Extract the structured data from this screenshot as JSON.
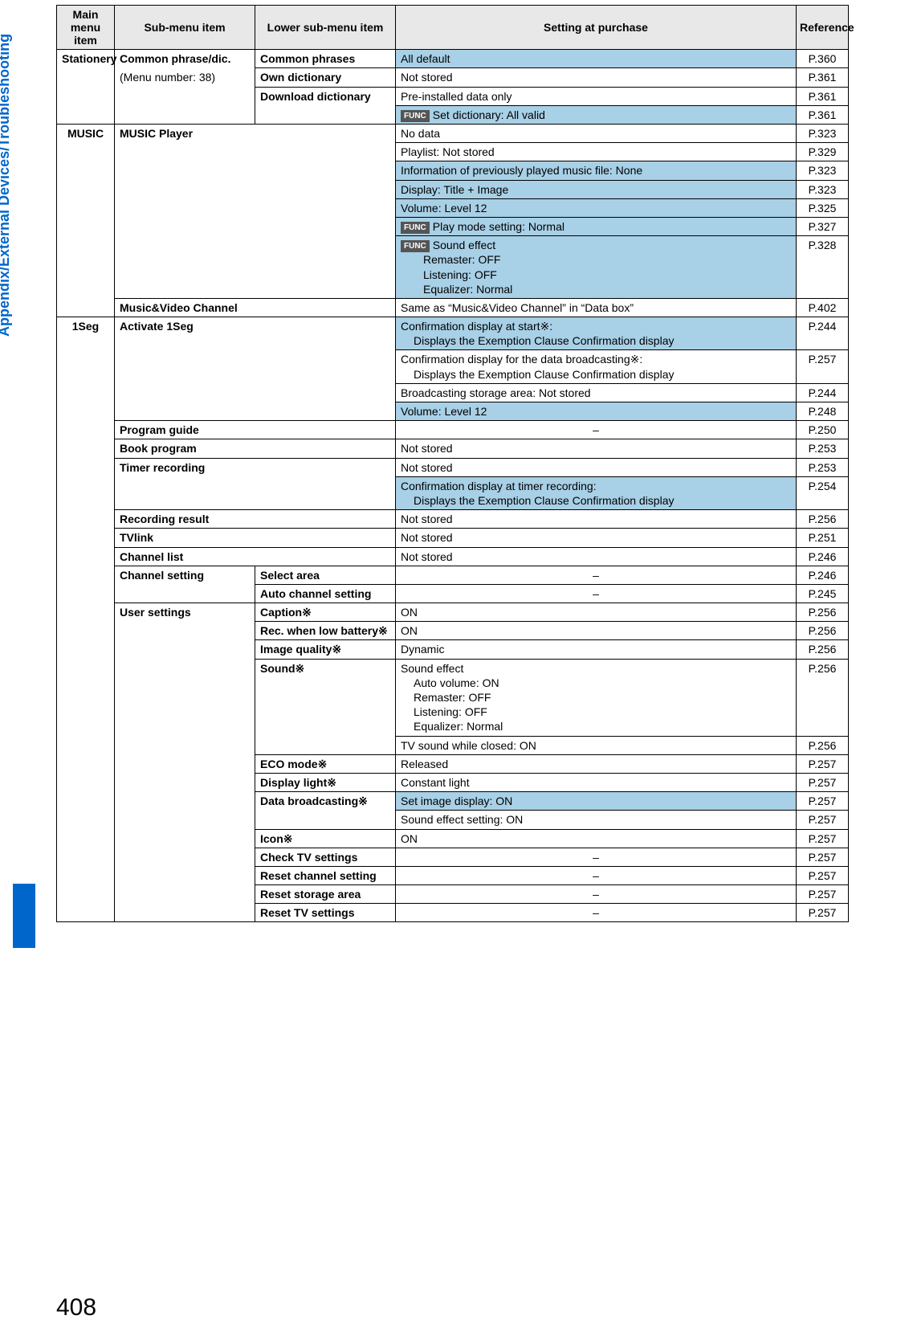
{
  "sidebar": {
    "label": "Appendix/External Devices/Troubleshooting"
  },
  "pageNumber": "408",
  "headers": {
    "main": "Main menu item",
    "sub": "Sub-menu item",
    "lower": "Lower sub-menu item",
    "setting": "Setting at purchase",
    "ref": "Reference"
  },
  "func": "FUNC",
  "sections": {
    "stationery": {
      "main": "Stationery",
      "sub1": "Common phrase/dic.",
      "sub2": "(Menu number: 38)",
      "r1_lower": "Common phrases",
      "r1_setting": "All default",
      "r1_ref": "P.360",
      "r2_lower": "Own dictionary",
      "r2_setting": "Not stored",
      "r2_ref": "P.361",
      "r3_lower": "Download dictionary",
      "r3_setting": "Pre-installed data only",
      "r3_ref": "P.361",
      "r4_setting": "Set dictionary: All valid",
      "r4_ref": "P.361"
    },
    "music": {
      "main": "MUSIC",
      "sub1": "MUSIC Player",
      "r1_setting": "No data",
      "r1_ref": "P.323",
      "r2_setting": "Playlist: Not stored",
      "r2_ref": "P.329",
      "r3_setting": "Information of previously played music file: None",
      "r3_ref": "P.323",
      "r4_setting": "Display: Title + Image",
      "r4_ref": "P.323",
      "r5_setting": "Volume: Level 12",
      "r5_ref": "P.325",
      "r6_setting": "Play mode setting: Normal",
      "r6_ref": "P.327",
      "r7_s1": "Sound effect",
      "r7_s2": "Remaster: OFF",
      "r7_s3": "Listening: OFF",
      "r7_s4": "Equalizer: Normal",
      "r7_ref": "P.328",
      "sub2": "Music&Video Channel",
      "r8_setting": "Same as “Music&Video Channel” in “Data box”",
      "r8_ref": "P.402"
    },
    "oneseg": {
      "main": "1Seg",
      "sub1": "Activate 1Seg",
      "r1_s1": "Confirmation display at start※:",
      "r1_s2": "Displays the Exemption Clause Confirmation display",
      "r1_ref": "P.244",
      "r2_s1": "Confirmation display for the data broadcasting※:",
      "r2_s2": "Displays the Exemption Clause Confirmation display",
      "r2_ref": "P.257",
      "r3_setting": "Broadcasting storage area: Not stored",
      "r3_ref": "P.244",
      "r4_setting": "Volume: Level 12",
      "r4_ref": "P.248",
      "sub2": "Program guide",
      "r5_setting": "–",
      "r5_ref": "P.250",
      "sub3": "Book program",
      "r6_setting": "Not stored",
      "r6_ref": "P.253",
      "sub4": "Timer recording",
      "r7_setting": "Not stored",
      "r7_ref": "P.253",
      "r8_s1": "Confirmation display at timer recording:",
      "r8_s2": "Displays the Exemption Clause Confirmation display",
      "r8_ref": "P.254",
      "sub5": "Recording result",
      "r9_setting": "Not stored",
      "r9_ref": "P.256",
      "sub6": "TVlink",
      "r10_setting": "Not stored",
      "r10_ref": "P.251",
      "sub7": "Channel list",
      "r11_setting": "Not stored",
      "r11_ref": "P.246",
      "sub8": "Channel setting",
      "l8a": "Select area",
      "r12_setting": "–",
      "r12_ref": "P.246",
      "l8b": "Auto channel setting",
      "r13_setting": "–",
      "r13_ref": "P.245",
      "sub9": "User settings",
      "l9a": "Caption※",
      "r14_setting": "ON",
      "r14_ref": "P.256",
      "l9b": "Rec. when low battery※",
      "r15_setting": "ON",
      "r15_ref": "P.256",
      "l9c": "Image quality※",
      "r16_setting": "Dynamic",
      "r16_ref": "P.256",
      "l9d": "Sound※",
      "r17_s1": "Sound effect",
      "r17_s2": "Auto volume: ON",
      "r17_s3": "Remaster: OFF",
      "r17_s4": "Listening: OFF",
      "r17_s5": "Equalizer: Normal",
      "r17_ref": "P.256",
      "r18_setting": "TV sound while closed: ON",
      "r18_ref": "P.256",
      "l9e": "ECO mode※",
      "r19_setting": "Released",
      "r19_ref": "P.257",
      "l9f": "Display light※",
      "r20_setting": "Constant light",
      "r20_ref": "P.257",
      "l9g": "Data broadcasting※",
      "r21_setting": "Set image display: ON",
      "r21_ref": "P.257",
      "r22_setting": "Sound effect setting: ON",
      "r22_ref": "P.257",
      "l9h": "Icon※",
      "r23_setting": "ON",
      "r23_ref": "P.257",
      "l9i": "Check TV settings",
      "r24_setting": "–",
      "r24_ref": "P.257",
      "l9j": "Reset channel setting",
      "r25_setting": "–",
      "r25_ref": "P.257",
      "l9k": "Reset storage area",
      "r26_setting": "–",
      "r26_ref": "P.257",
      "l9l": "Reset TV settings",
      "r27_setting": "–",
      "r27_ref": "P.257"
    }
  }
}
